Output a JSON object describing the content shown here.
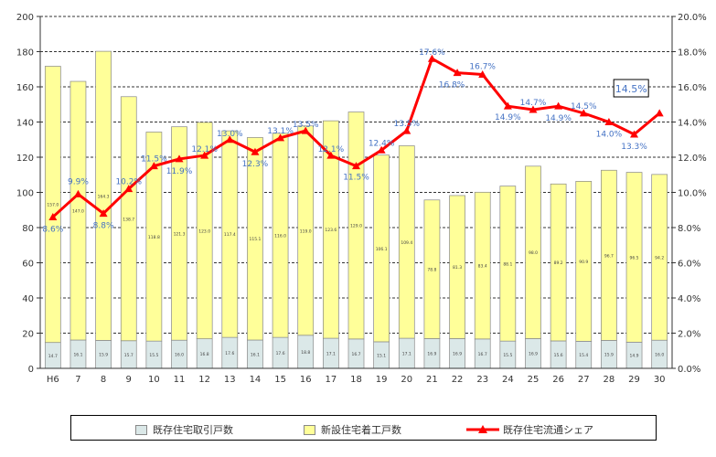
{
  "chart_data": {
    "type": "bar",
    "categories": [
      "H6",
      "7",
      "8",
      "9",
      "10",
      "11",
      "12",
      "13",
      "14",
      "15",
      "16",
      "17",
      "18",
      "19",
      "20",
      "21",
      "22",
      "23",
      "24",
      "25",
      "26",
      "27",
      "28",
      "29",
      "30"
    ],
    "series": [
      {
        "name": "既存住宅取引戸数",
        "type": "stacked-bar",
        "values": [
          14.7,
          16.1,
          15.9,
          15.7,
          15.5,
          16.0,
          16.8,
          17.6,
          16.1,
          17.6,
          18.8,
          17.1,
          16.7,
          15.1,
          17.1,
          16.9,
          16.9,
          16.7,
          15.5,
          16.9,
          15.6,
          15.4,
          15.9,
          14.9,
          16.0
        ],
        "labels": [
          "14.7",
          "16.1",
          "15.9",
          "15.7",
          "15.5",
          "16.0",
          "16.8",
          "17.6",
          "16.1",
          "17.6",
          "18.8",
          "17.1",
          "16.7",
          "15.1",
          "17.1",
          "16.9",
          "16.9",
          "16.7",
          "15.5",
          "16.9",
          "15.6",
          "15.4",
          "15.9",
          "14.9",
          "16.0"
        ],
        "color": "#dbe8e8"
      },
      {
        "name": "新設住宅着工戸数",
        "type": "stacked-bar",
        "values": [
          157.0,
          147.0,
          164.3,
          138.7,
          118.8,
          121.3,
          123.0,
          117.4,
          115.1,
          116.0,
          119.0,
          123.6,
          129.0,
          106.1,
          109.4,
          78.8,
          81.3,
          83.4,
          88.1,
          98.0,
          89.2,
          90.9,
          96.7,
          96.5,
          94.2
        ],
        "labels": [
          "157.0",
          "147.0",
          "164.3",
          "138.7",
          "118.8",
          "121.3",
          "123.0",
          "117.4",
          "115.1",
          "116.0",
          "119.0",
          "123.6",
          "129.0",
          "106.1",
          "109.4",
          "78.8",
          "81.3",
          "83.4",
          "88.1",
          "98.0",
          "89.2",
          "90.9",
          "96.7",
          "96.5",
          "94.2"
        ],
        "color": "#ffff99"
      },
      {
        "name": "既存住宅流通シェア",
        "type": "line",
        "axis": "right",
        "values": [
          8.6,
          9.9,
          8.8,
          10.2,
          11.5,
          11.9,
          12.1,
          13.0,
          12.3,
          13.1,
          13.5,
          12.1,
          11.5,
          12.4,
          13.5,
          17.6,
          16.8,
          16.7,
          14.9,
          14.7,
          14.9,
          14.5,
          14.0,
          13.3,
          14.5
        ],
        "labels": [
          "8.6%",
          "9.9%",
          "8.8%",
          "10.2%",
          "11.5%",
          "11.9%",
          "12.1%",
          "13.0%",
          "12.3%",
          "13.1%",
          "13.5%",
          "12.1%",
          "11.5%",
          "12.4%",
          "13.5%",
          "17.6%",
          "16.8%",
          "16.7%",
          "14.9%",
          "14.7%",
          "14.9%",
          "14.5%",
          "14.0%",
          "13.3%",
          "14.5%"
        ],
        "color": "#ff0000"
      }
    ],
    "left_axis": {
      "min": 0,
      "max": 200,
      "step": 20,
      "ticks": [
        "0",
        "20",
        "40",
        "60",
        "80",
        "100",
        "120",
        "140",
        "160",
        "180",
        "200"
      ]
    },
    "right_axis": {
      "min": 0,
      "max": 20,
      "step": 2,
      "ticks": [
        "0.0%",
        "2.0%",
        "4.0%",
        "6.0%",
        "8.0%",
        "10.0%",
        "12.0%",
        "14.0%",
        "16.0%",
        "18.0%",
        "20.0%"
      ]
    },
    "grid": "horizontal dashed",
    "highlighted_label": "14.5%",
    "legend_position": "bottom",
    "label_color": "#4472c4"
  },
  "legend": {
    "existing": "既存住宅取引戸数",
    "new": "新設住宅着工戸数",
    "share": "既存住宅流通シェア"
  }
}
